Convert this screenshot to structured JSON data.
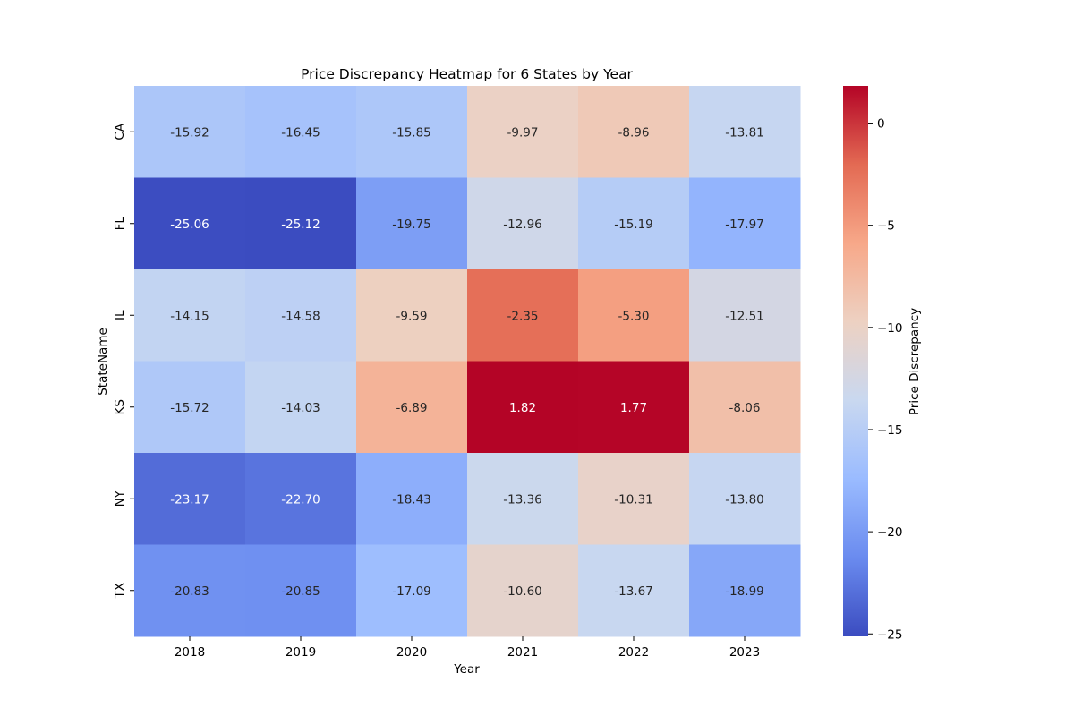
{
  "chart_data": {
    "type": "heatmap",
    "title": "Price Discrepancy Heatmap for 6 States by Year",
    "xlabel": "Year",
    "ylabel": "StateName",
    "x": [
      "2018",
      "2019",
      "2020",
      "2021",
      "2022",
      "2023"
    ],
    "y": [
      "CA",
      "FL",
      "IL",
      "KS",
      "NY",
      "TX"
    ],
    "values": [
      [
        -15.92,
        -16.45,
        -15.85,
        -9.97,
        -8.96,
        -13.81
      ],
      [
        -25.06,
        -25.12,
        -19.75,
        -12.96,
        -15.19,
        -17.97
      ],
      [
        -14.15,
        -14.58,
        -9.59,
        -2.35,
        -5.3,
        -12.51
      ],
      [
        -15.72,
        -14.03,
        -6.89,
        1.82,
        1.77,
        -8.06
      ],
      [
        -23.17,
        -22.7,
        -18.43,
        -13.36,
        -10.31,
        -13.8
      ],
      [
        -20.83,
        -20.85,
        -17.09,
        -10.6,
        -13.67,
        -18.99
      ]
    ],
    "colorbar": {
      "label": "Price Discrepancy",
      "range": [
        -25.12,
        1.82
      ],
      "ticks": [
        0,
        -5,
        -10,
        -15,
        -20,
        -25
      ],
      "tick_labels": [
        "0",
        "−5",
        "−10",
        "−15",
        "−20",
        "−25"
      ]
    },
    "colormap": "coolwarm",
    "colormap_stops": [
      "#3b4cc0",
      "#6a8bef",
      "#9abbff",
      "#c9d8f0",
      "#edd1c2",
      "#f7a889",
      "#e36a53",
      "#b40426"
    ],
    "annotation_format": "2 decimals",
    "grid": false
  }
}
